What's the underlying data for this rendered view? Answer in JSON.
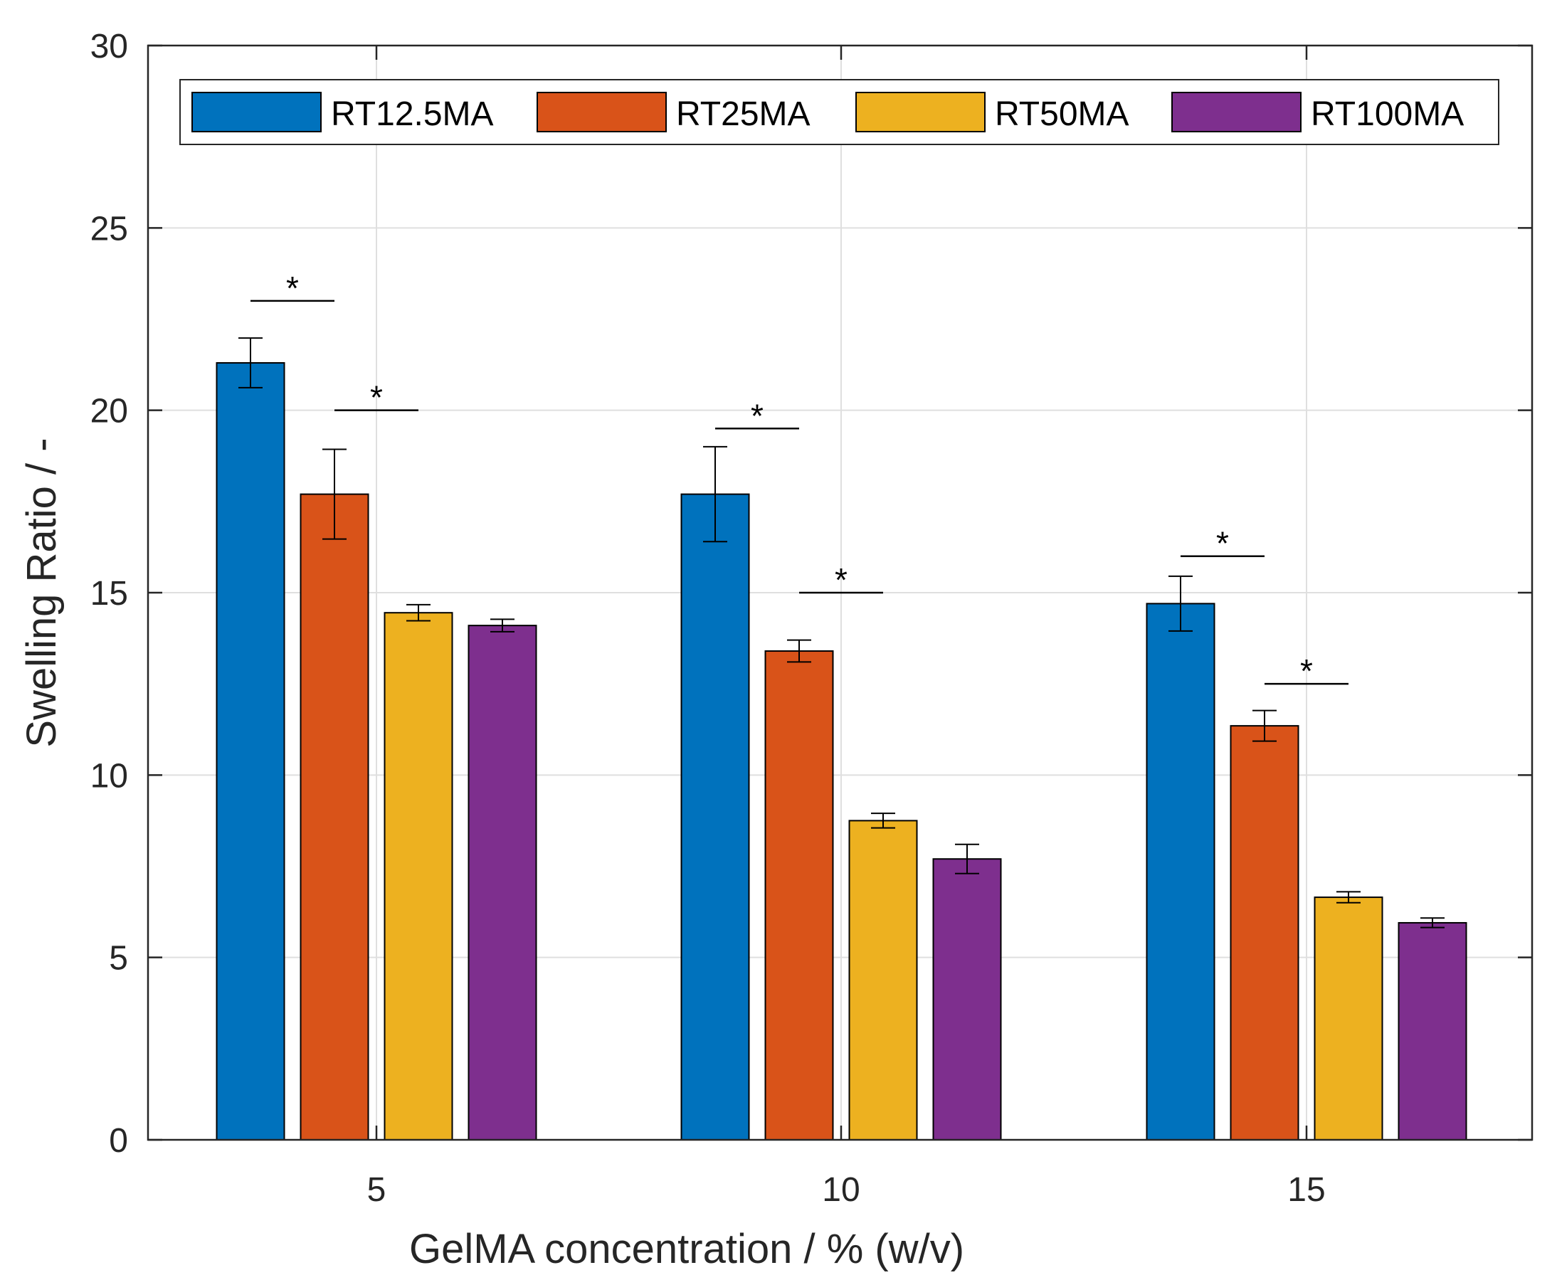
{
  "chart_data": {
    "type": "bar",
    "title": "",
    "xlabel": "GelMA concentration / % (w/v)",
    "ylabel": "Swelling Ratio / -",
    "categories": [
      "5",
      "10",
      "15"
    ],
    "ylim": [
      0,
      30
    ],
    "yticks": [
      "0",
      "5",
      "10",
      "15",
      "20",
      "25",
      "30"
    ],
    "grid": true,
    "legend_position": "top",
    "series": [
      {
        "name": "RT12.5MA",
        "color": "#0072BD",
        "values": [
          21.3,
          17.7,
          14.7
        ],
        "errors": [
          0.68,
          1.3,
          0.75
        ]
      },
      {
        "name": "RT25MA",
        "color": "#D95319",
        "values": [
          17.7,
          13.4,
          11.35
        ],
        "errors": [
          1.23,
          0.3,
          0.42
        ]
      },
      {
        "name": "RT50MA",
        "color": "#EDB120",
        "values": [
          14.45,
          8.75,
          6.65
        ],
        "errors": [
          0.22,
          0.2,
          0.15
        ]
      },
      {
        "name": "RT100MA",
        "color": "#7E2F8E",
        "values": [
          14.1,
          7.7,
          5.95
        ],
        "errors": [
          0.17,
          0.4,
          0.13
        ]
      }
    ],
    "significance": [
      {
        "label": "*",
        "category": 0,
        "from_series": 0,
        "to_series": 1,
        "y": 23.0
      },
      {
        "label": "*",
        "category": 0,
        "from_series": 1,
        "to_series": 2,
        "y": 20.0
      },
      {
        "label": "*",
        "category": 1,
        "from_series": 0,
        "to_series": 1,
        "y": 19.5
      },
      {
        "label": "*",
        "category": 1,
        "from_series": 1,
        "to_series": 2,
        "y": 15.0
      },
      {
        "label": "*",
        "category": 2,
        "from_series": 0,
        "to_series": 1,
        "y": 16.0
      },
      {
        "label": "*",
        "category": 2,
        "from_series": 1,
        "to_series": 2,
        "y": 12.5
      }
    ]
  }
}
